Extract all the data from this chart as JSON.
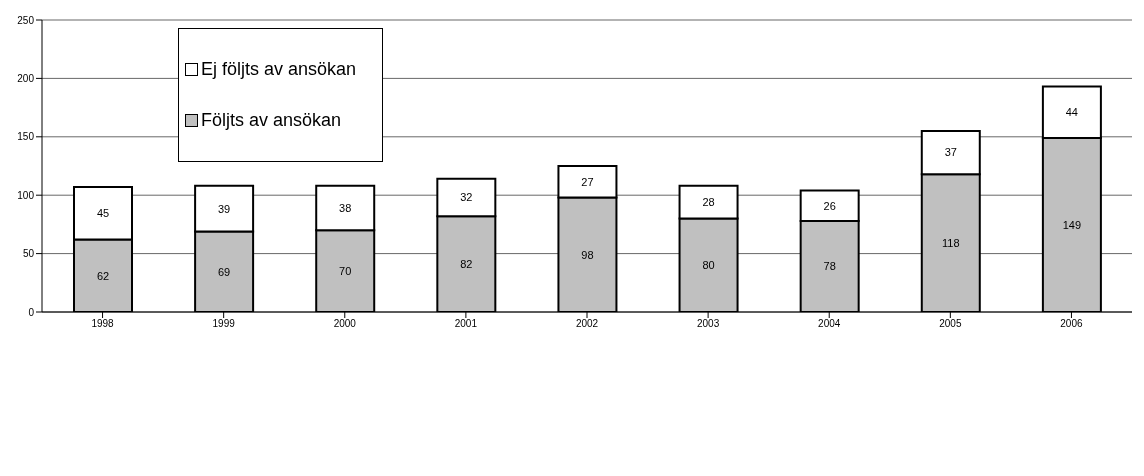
{
  "chart_data": {
    "type": "bar",
    "stacked": true,
    "categories": [
      "1998",
      "1999",
      "2000",
      "2001",
      "2002",
      "2003",
      "2004",
      "2005",
      "2006"
    ],
    "series": [
      {
        "name": "Följts av ansökan",
        "color": "#c0c0c0",
        "values": [
          62,
          69,
          70,
          82,
          98,
          80,
          78,
          118,
          149
        ]
      },
      {
        "name": "Ej följts av ansökan",
        "color": "#ffffff",
        "values": [
          45,
          39,
          38,
          32,
          27,
          28,
          26,
          37,
          44
        ]
      }
    ],
    "ylim": [
      0,
      250
    ],
    "yticks": [
      0,
      50,
      100,
      150,
      200,
      250
    ],
    "grid": "y",
    "legend": "top left",
    "data_labels": true
  }
}
